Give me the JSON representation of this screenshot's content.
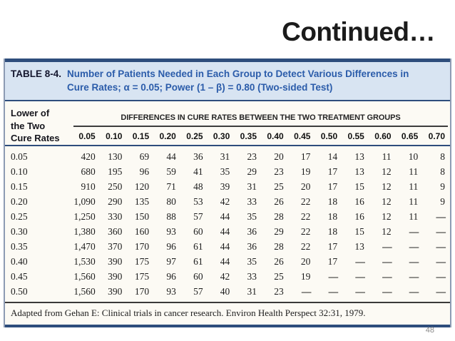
{
  "slide": {
    "title": "Continued…",
    "page_number": "48"
  },
  "table": {
    "label": "TABLE 8-4.",
    "caption_lines": [
      "Number of Patients Needed in Each Group to Detect Various Differences in",
      "Cure Rates; α = 0.05; Power (1 – β) = 0.80 (Two-sided Test)"
    ],
    "row_header_lines": [
      "Lower of",
      "the Two",
      "Cure Rates"
    ],
    "span_header": "DIFFERENCES IN CURE RATES BETWEEN THE TWO TREATMENT GROUPS",
    "column_headers": [
      "0.05",
      "0.10",
      "0.15",
      "0.20",
      "0.25",
      "0.30",
      "0.35",
      "0.40",
      "0.45",
      "0.50",
      "0.55",
      "0.60",
      "0.65",
      "0.70"
    ],
    "rows": [
      {
        "label": "0.05",
        "values": [
          "420",
          "130",
          "69",
          "44",
          "36",
          "31",
          "23",
          "20",
          "17",
          "14",
          "13",
          "11",
          "10",
          "8"
        ]
      },
      {
        "label": "0.10",
        "values": [
          "680",
          "195",
          "96",
          "59",
          "41",
          "35",
          "29",
          "23",
          "19",
          "17",
          "13",
          "12",
          "11",
          "8"
        ]
      },
      {
        "label": "0.15",
        "values": [
          "910",
          "250",
          "120",
          "71",
          "48",
          "39",
          "31",
          "25",
          "20",
          "17",
          "15",
          "12",
          "11",
          "9"
        ]
      },
      {
        "label": "0.20",
        "values": [
          "1,090",
          "290",
          "135",
          "80",
          "53",
          "42",
          "33",
          "26",
          "22",
          "18",
          "16",
          "12",
          "11",
          "9"
        ]
      },
      {
        "label": "0.25",
        "values": [
          "1,250",
          "330",
          "150",
          "88",
          "57",
          "44",
          "35",
          "28",
          "22",
          "18",
          "16",
          "12",
          "11",
          "—"
        ]
      },
      {
        "label": "0.30",
        "values": [
          "1,380",
          "360",
          "160",
          "93",
          "60",
          "44",
          "36",
          "29",
          "22",
          "18",
          "15",
          "12",
          "—",
          "—"
        ]
      },
      {
        "label": "0.35",
        "values": [
          "1,470",
          "370",
          "170",
          "96",
          "61",
          "44",
          "36",
          "28",
          "22",
          "17",
          "13",
          "—",
          "—",
          "—"
        ]
      },
      {
        "label": "0.40",
        "values": [
          "1,530",
          "390",
          "175",
          "97",
          "61",
          "44",
          "35",
          "26",
          "20",
          "17",
          "—",
          "—",
          "—",
          "—"
        ]
      },
      {
        "label": "0.45",
        "values": [
          "1,560",
          "390",
          "175",
          "96",
          "60",
          "42",
          "33",
          "25",
          "19",
          "—",
          "—",
          "—",
          "—",
          "—"
        ]
      },
      {
        "label": "0.50",
        "values": [
          "1,560",
          "390",
          "170",
          "93",
          "57",
          "40",
          "31",
          "23",
          "—",
          "—",
          "—",
          "—",
          "—",
          "—"
        ]
      }
    ],
    "footnote": "Adapted from Gehan E: Clinical trials in cancer research. Environ Health Perspect 32:31, 1979.",
    "colors": {
      "navy_border": "#2e4d7c",
      "caption_background": "#d8e4f2",
      "caption_text": "#2b5caa",
      "body_background": "#fcfaf4"
    }
  }
}
